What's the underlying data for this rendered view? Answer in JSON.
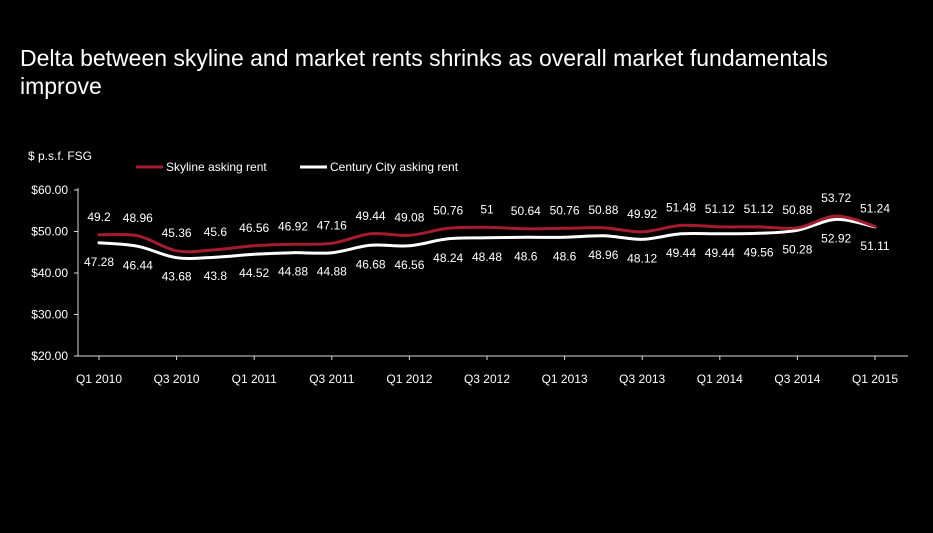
{
  "chart_data": {
    "type": "line",
    "title": "Delta between skyline and market rents shrinks as overall market fundamentals improve",
    "ylabel": "$ p.s.f. FSG",
    "xlabel": "",
    "ylim": [
      20,
      60
    ],
    "yticks": [
      "$20.00",
      "$30.00",
      "$40.00",
      "$50.00",
      "$60.00"
    ],
    "ytick_values": [
      20,
      30,
      40,
      50,
      60
    ],
    "x_tick_labels": [
      "Q1 2010",
      "Q3 2010",
      "Q1 2011",
      "Q3 2011",
      "Q1 2012",
      "Q3 2012",
      "Q1 2013",
      "Q3 2013",
      "Q1 2014",
      "Q3 2014",
      "Q1 2015"
    ],
    "legend_position": "top-left",
    "grid": false,
    "series": [
      {
        "name": "Skyline asking rent",
        "color": "#a51c30",
        "values": [
          49.2,
          48.96,
          45.36,
          45.6,
          46.56,
          46.92,
          47.16,
          49.44,
          49.08,
          50.76,
          51,
          50.64,
          50.76,
          50.88,
          49.92,
          51.48,
          51.12,
          51.12,
          50.88,
          53.72,
          51.24
        ]
      },
      {
        "name": "Century City asking rent",
        "color": "#ffffff",
        "values": [
          47.28,
          46.44,
          43.68,
          43.8,
          44.52,
          44.88,
          44.88,
          46.68,
          46.56,
          48.24,
          48.48,
          48.6,
          48.6,
          48.96,
          48.12,
          49.44,
          49.44,
          49.56,
          50.28,
          52.92,
          51.11
        ]
      }
    ]
  }
}
